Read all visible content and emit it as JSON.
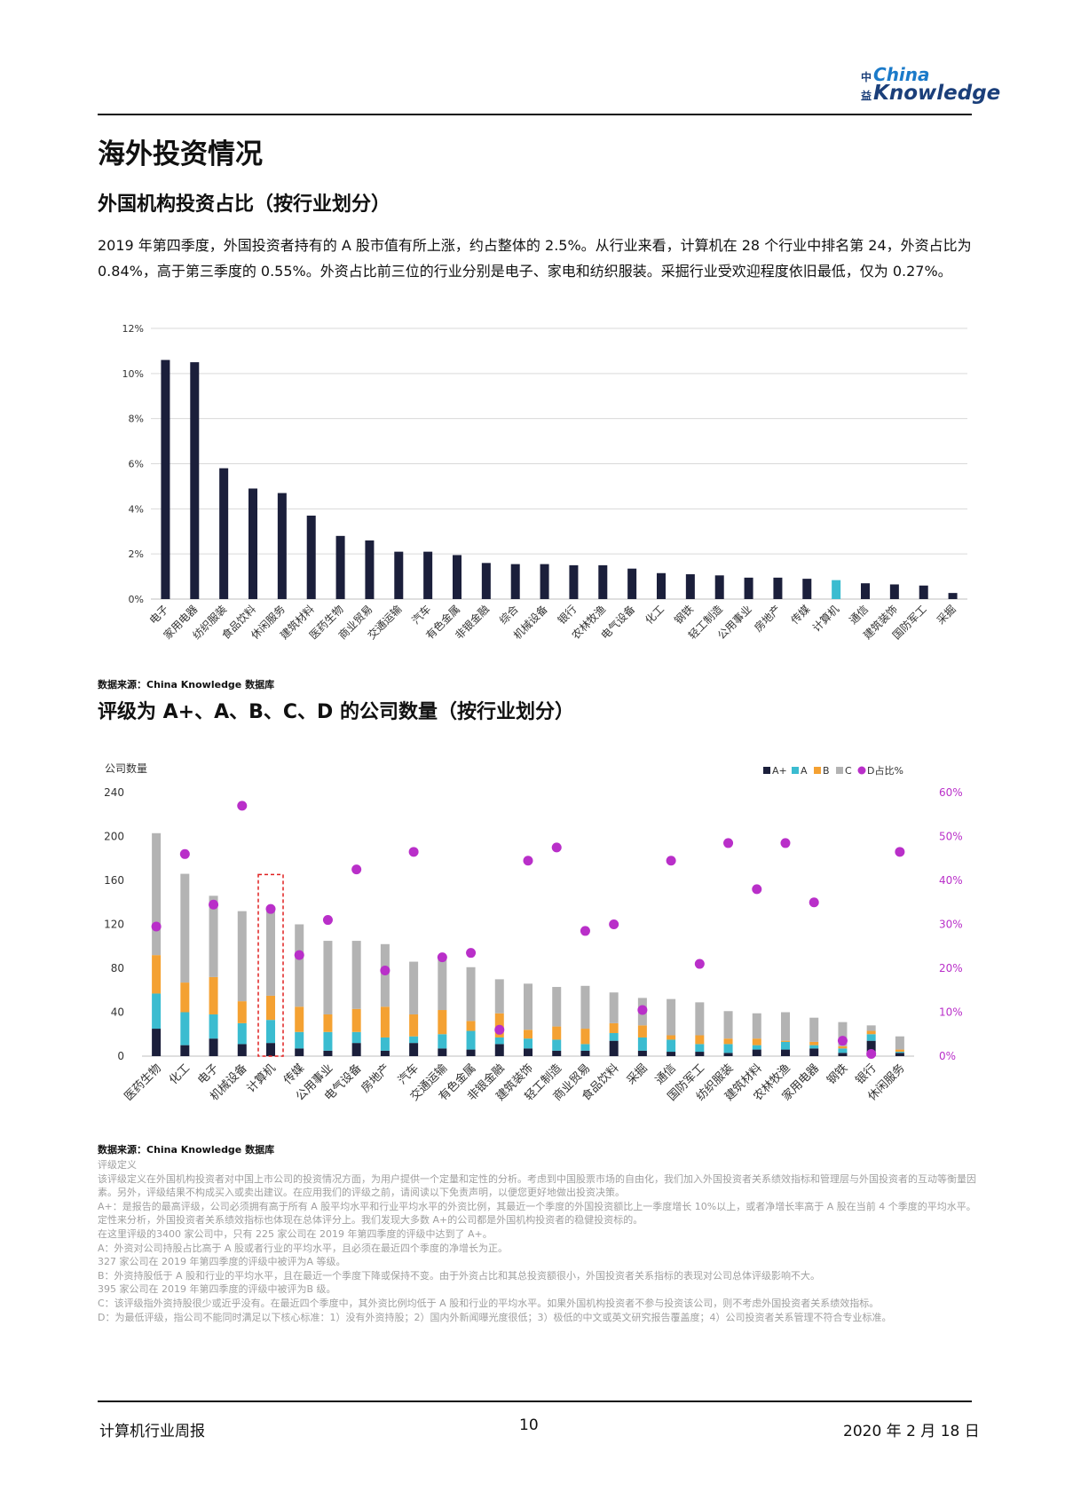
{
  "header": {
    "logo_top": "China",
    "logo_bottom": "Knowledge",
    "logo_cn_top": "中",
    "logo_cn_bottom": "益"
  },
  "section_title": "海外投资情况",
  "chart1_heading": "外国机构投资占比（按行业划分）",
  "intro": "2019 年第四季度，外国投资者持有的 A 股市值有所上涨，约占整体的 2.5%。从行业来看，计算机在 28 个行业中排名第 24，外资占比为 0.84%，高于第三季度的 0.55%。外资占比前三位的行业分别是电子、家电和纺织服装。采掘行业受欢迎程度依旧最低，仅为 0.27%。",
  "source1": "数据来源：China Knowledge 数据库",
  "chart2_heading": "评级为 A+、A、B、C、D 的公司数量（按行业划分）",
  "source2": "数据来源：China Knowledge 数据库",
  "chart_data": [
    {
      "type": "bar",
      "title": "",
      "xlabel": "",
      "ylabel": "",
      "ylim": [
        0,
        12
      ],
      "yticks": [
        "0%",
        "2%",
        "4%",
        "6%",
        "8%",
        "10%",
        "12%"
      ],
      "grid": true,
      "categories": [
        "电子",
        "家用电器",
        "纺织服装",
        "食品饮料",
        "休闲服务",
        "建筑材料",
        "医药生物",
        "商业贸易",
        "交通运输",
        "汽车",
        "有色金属",
        "非银金融",
        "综合",
        "机械设备",
        "银行",
        "农林牧渔",
        "电气设备",
        "化工",
        "钢铁",
        "轻工制造",
        "公用事业",
        "房地产",
        "传媒",
        "计算机",
        "通信",
        "建筑装饰",
        "国防军工",
        "采掘"
      ],
      "values": [
        10.6,
        10.5,
        5.8,
        4.9,
        4.7,
        3.7,
        2.8,
        2.6,
        2.1,
        2.1,
        1.95,
        1.6,
        1.55,
        1.55,
        1.5,
        1.5,
        1.35,
        1.15,
        1.1,
        1.05,
        0.95,
        0.95,
        0.9,
        0.84,
        0.7,
        0.65,
        0.6,
        0.27
      ],
      "colors": {
        "bar": "#1b1f3b",
        "highlight": "#3bbcd0"
      },
      "highlight": "计算机"
    },
    {
      "type": "bar",
      "stacked": true,
      "title": "",
      "ylabel": "公司数量",
      "y2label": "",
      "ylim": [
        0,
        240
      ],
      "y2lim": [
        0,
        60
      ],
      "yticks": [
        "0",
        "40",
        "80",
        "120",
        "160",
        "200",
        "240"
      ],
      "y2ticks": [
        "0%",
        "10%",
        "20%",
        "30%",
        "40%",
        "50%",
        "60%"
      ],
      "legend_position": "top-right",
      "highlight": "计算机",
      "categories": [
        "医药生物",
        "化工",
        "电子",
        "机械设备",
        "计算机",
        "传媒",
        "公用事业",
        "电气设备",
        "房地产",
        "汽车",
        "交通运输",
        "有色金属",
        "非银金融",
        "建筑装饰",
        "轻工制造",
        "商业贸易",
        "食品饮料",
        "采掘",
        "通信",
        "国防军工",
        "纺织服装",
        "建筑材料",
        "农林牧渔",
        "家用电器",
        "钢铁",
        "银行",
        "休闲服务"
      ],
      "series": [
        {
          "name": "A+",
          "color": "#1b1f3b",
          "values": [
            25,
            10,
            16,
            11,
            12,
            7,
            5,
            12,
            5,
            12,
            7,
            6,
            11,
            7,
            5,
            5,
            14,
            5,
            4,
            4,
            3,
            6,
            6,
            7,
            3,
            14,
            3
          ]
        },
        {
          "name": "A",
          "color": "#3bbcd0",
          "values": [
            32,
            30,
            22,
            19,
            21,
            15,
            17,
            10,
            12,
            6,
            13,
            17,
            6,
            9,
            10,
            6,
            7,
            12,
            11,
            7,
            8,
            4,
            7,
            3,
            4,
            6,
            1
          ]
        },
        {
          "name": "B",
          "color": "#f4a132",
          "values": [
            35,
            27,
            34,
            20,
            22,
            23,
            16,
            21,
            28,
            20,
            22,
            9,
            22,
            8,
            12,
            14,
            9,
            11,
            4,
            8,
            5,
            6,
            1,
            3,
            2,
            3,
            2
          ]
        },
        {
          "name": "C",
          "color": "#b3b3b3",
          "values": [
            111,
            99,
            74,
            82,
            78,
            75,
            67,
            62,
            57,
            48,
            46,
            49,
            31,
            42,
            36,
            39,
            28,
            25,
            33,
            30,
            25,
            23,
            26,
            22,
            22,
            5,
            12
          ]
        },
        {
          "name": "D占比%",
          "type": "scatter",
          "axis": "right",
          "color": "#b92fc9",
          "values": [
            29.5,
            46,
            34.5,
            57,
            33.5,
            23,
            31,
            42.5,
            19.5,
            46.5,
            22.5,
            23.5,
            6,
            44.5,
            47.5,
            28.5,
            30,
            10.5,
            44.5,
            21,
            48.5,
            38,
            48.5,
            35,
            3.5,
            0.5,
            46.5
          ]
        }
      ]
    }
  ],
  "definitions": [
    "评级定义",
    "该评级定义在外国机构投资者对中国上市公司的投资情况方面，为用户提供一个定量和定性的分析。考虑到中国股票市场的自由化，我们加入外国投资者关系绩效指标和管理层与外国投资者的互动等衡量因素。另外，评级结果不构成买入或卖出建议。在应用我们的评级之前，请阅读以下免责声明，以便您更好地做出投资决策。",
    "A+：是报告的最高评级，公司必须拥有高于所有 A 股平均水平和行业平均水平的外资比例，其最近一个季度的外国投资额比上一季度增长 10%以上，或者净增长率高于 A 股在当前 4 个季度的平均水平。定性来分析，外国投资者关系绩效指标也体现在总体评分上。我们发现大多数 A+的公司都是外国机构投资者的稳健投资标的。",
    "在这里评级的3400 家公司中，只有 225 家公司在 2019 年第四季度的评级中达到了 A+。",
    "A：外资对公司持股占比高于 A 股或者行业的平均水平，且必须在最近四个季度的净增长为正。",
    "327 家公司在 2019 年第四季度的评级中被评为A 等级。",
    "B：外资持股低于 A 股和行业的平均水平，且在最近一个季度下降或保持不变。由于外资占比和其总投资额很小，外国投资者关系指标的表现对公司总体评级影响不大。",
    "395 家公司在 2019 年第四季度的评级中被评为B 级。",
    "C：该评级指外资持股很少或近乎没有。在最近四个季度中，其外资比例均低于 A 股和行业的平均水平。如果外国机构投资者不参与投资该公司，则不考虑外国投资者关系绩效指标。",
    "D：为最低评级，指公司不能同时满足以下核心标准：1）没有外资持股；2）国内外新闻曝光度很低；3）极低的中文或英文研究报告覆盖度；4）公司投资者关系管理不符合专业标准。"
  ],
  "footer": {
    "report_name": "计算机行业周报",
    "page": "10",
    "date": "2020 年 2 月 18 日"
  }
}
